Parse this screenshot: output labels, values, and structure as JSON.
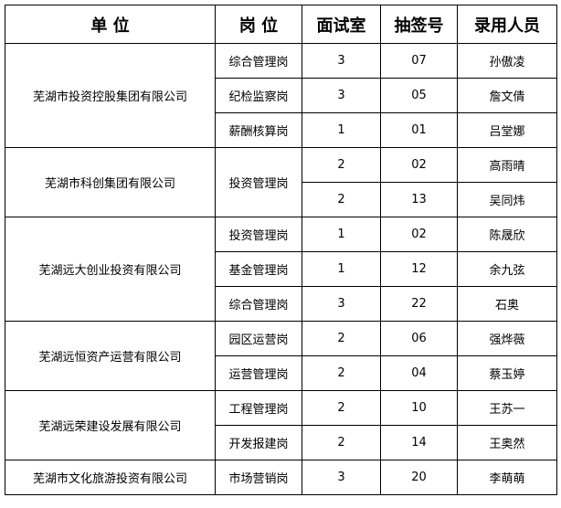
{
  "headers": [
    "单 位",
    "岗 位",
    "面试室",
    "抽签号",
    "录用人员"
  ],
  "groups": [
    {
      "unit": "芜湖市投资控股集团有限公司",
      "rows": [
        {
          "post": "综合管理岗",
          "room": "3",
          "number": "07",
          "name": "孙傲凌"
        },
        {
          "post": "纪检监察岗",
          "room": "3",
          "number": "05",
          "name": "詹文倩"
        },
        {
          "post": "薪酬核算岗",
          "room": "1",
          "number": "01",
          "name": "吕堂娜"
        }
      ]
    },
    {
      "unit": "芜湖市科创集团有限公司",
      "post": "投资管理岗",
      "rows": [
        {
          "room": "2",
          "number": "02",
          "name": "高雨晴"
        },
        {
          "room": "2",
          "number": "13",
          "name": "吴同炜"
        }
      ]
    },
    {
      "unit": "芜湖远大创业投资有限公司",
      "rows": [
        {
          "post": "投资管理岗",
          "room": "1",
          "number": "02",
          "name": "陈晟欣"
        },
        {
          "post": "基金管理岗",
          "room": "1",
          "number": "12",
          "name": "余九弦"
        },
        {
          "post": "综合管理岗",
          "room": "3",
          "number": "22",
          "name": "石奥"
        }
      ]
    },
    {
      "unit": "芜湖远恒资产运营有限公司",
      "rows": [
        {
          "post": "园区运营岗",
          "room": "2",
          "number": "06",
          "name": "强烨薇"
        },
        {
          "post": "运营管理岗",
          "room": "2",
          "number": "04",
          "name": "蔡玉婷"
        }
      ]
    },
    {
      "unit": "芜湖远荣建设发展有限公司",
      "rows": [
        {
          "post": "工程管理岗",
          "room": "2",
          "number": "10",
          "name": "王苏一"
        },
        {
          "post": "开发报建岗",
          "room": "2",
          "number": "14",
          "name": "王奥然"
        }
      ]
    },
    {
      "unit": "芜湖市文化旅游投资有限公司",
      "rows": [
        {
          "post": "市场营销岗",
          "room": "3",
          "number": "20",
          "name": "李萌萌"
        }
      ]
    }
  ]
}
